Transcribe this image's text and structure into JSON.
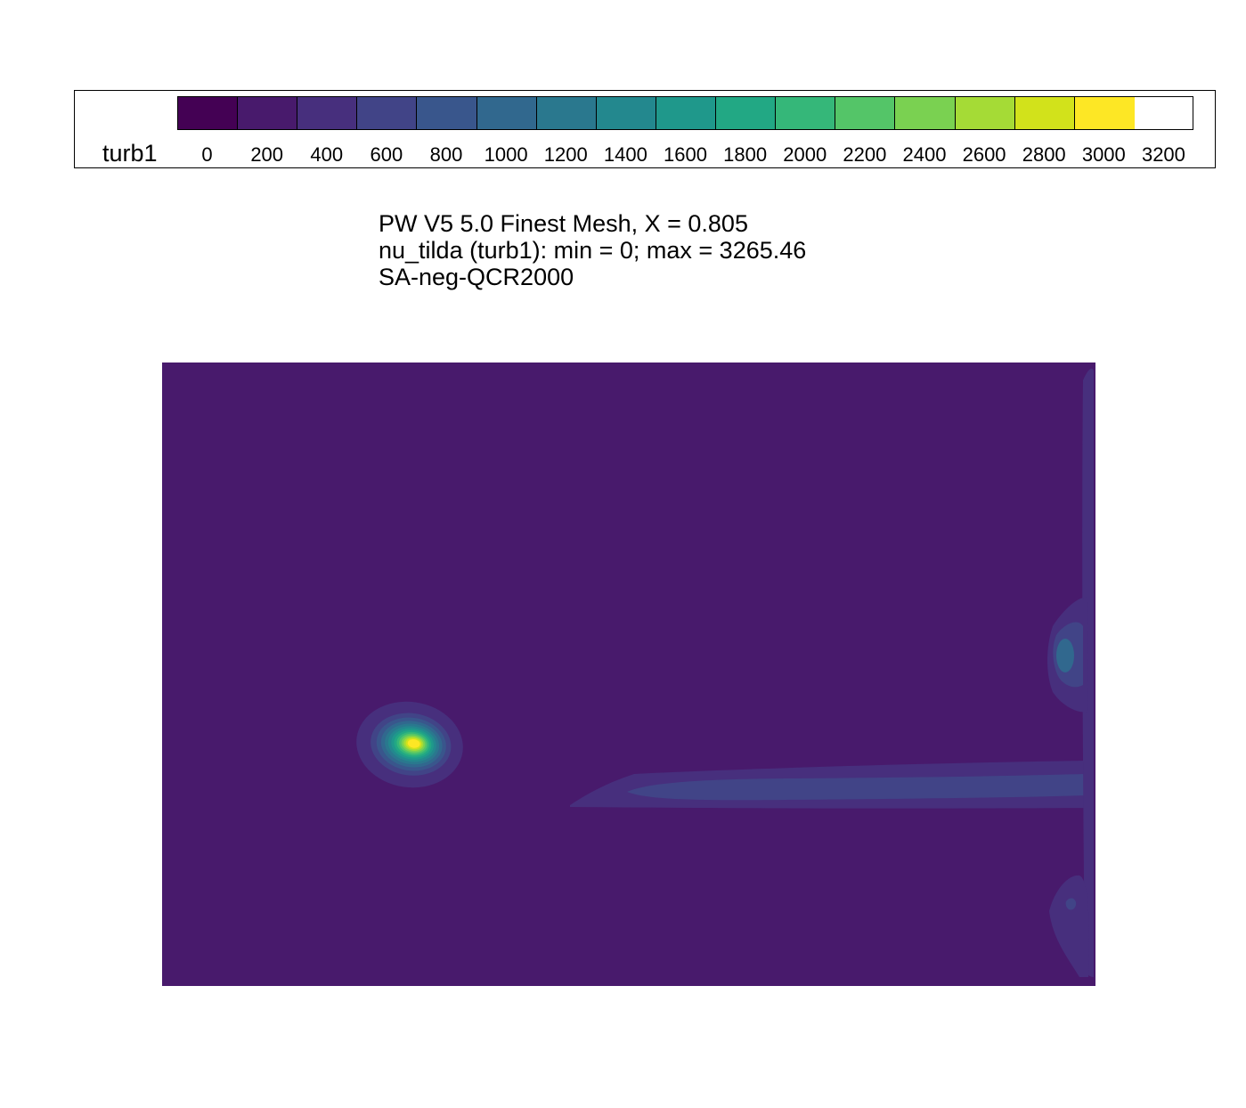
{
  "chart_data": {
    "type": "heatmap",
    "variable": "turb1",
    "title_lines": [
      "PW V5 5.0 Finest Mesh, X = 0.805",
      "nu_tilda (turb1): min = 0; max = 3265.46",
      "SA-neg-QCR2000"
    ],
    "min": 0,
    "max": 3265.46,
    "colorbar": {
      "levels": [
        -100,
        100,
        300,
        500,
        700,
        900,
        1100,
        1300,
        1500,
        1700,
        1900,
        2100,
        2300,
        2500,
        2700,
        2900,
        3100,
        3300
      ],
      "ticks": [
        "0",
        "200",
        "400",
        "600",
        "800",
        "1000",
        "1200",
        "1400",
        "1600",
        "1800",
        "2000",
        "2200",
        "2400",
        "2600",
        "2800",
        "3000",
        "3200"
      ],
      "tick_values": [
        0,
        200,
        400,
        600,
        800,
        1000,
        1200,
        1400,
        1600,
        1800,
        2000,
        2200,
        2400,
        2600,
        2800,
        3000,
        3200
      ],
      "colors": [
        "#440154",
        "#481a6c",
        "#472f7d",
        "#414487",
        "#39568c",
        "#31688e",
        "#2a788e",
        "#23888e",
        "#1f988b",
        "#22a884",
        "#35b779",
        "#54c568",
        "#7ad151",
        "#a5db36",
        "#d2e21b",
        "#fde725"
      ]
    },
    "background_value_level": 1,
    "features": [
      {
        "name": "vortex-core",
        "peak_value": 3265.46,
        "shape": "elliptical blob, left-center"
      },
      {
        "name": "wake-sheet",
        "peak_value": 600,
        "shape": "horizontal band, right half"
      },
      {
        "name": "wall-upper-blob",
        "peak_value": 1000,
        "shape": "small blob along right wall"
      },
      {
        "name": "wall-lower-blob",
        "peak_value": 600,
        "shape": "small blob along right wall"
      }
    ]
  }
}
